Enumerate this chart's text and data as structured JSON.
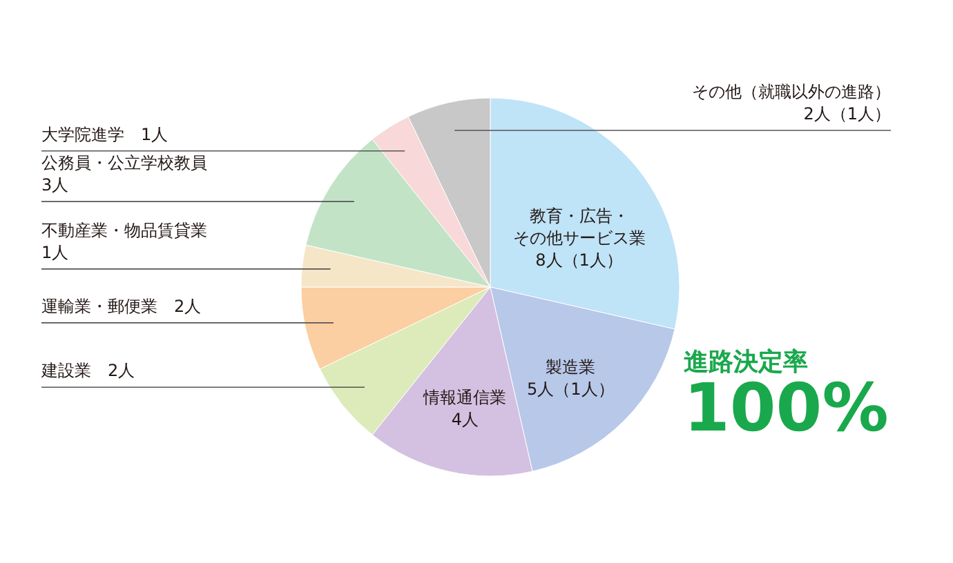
{
  "chart_data": {
    "type": "pie",
    "categories": [
      "教育・広告・その他サービス業",
      "製造業",
      "情報通信業",
      "建設業",
      "運輸業・郵便業",
      "不動産業・物品賃貸業",
      "公務員・公立学校教員",
      "大学院進学",
      "その他（就職以外の進路）"
    ],
    "values": [
      8,
      5,
      4,
      2,
      2,
      1,
      3,
      1,
      2
    ],
    "value_labels": [
      "8人（1人）",
      "5人（1人）",
      "4人",
      "2人",
      "2人",
      "1人",
      "3人",
      "1人",
      "2人（1人）"
    ],
    "colors": [
      "#bfe3f7",
      "#b7c8e9",
      "#d4c0e0",
      "#dcebb9",
      "#fbcfa1",
      "#f5e6c8",
      "#c3e3c7",
      "#f8d8d8",
      "#c8c8c8"
    ],
    "annotations": [
      "進路決定率",
      "100%"
    ]
  }
}
